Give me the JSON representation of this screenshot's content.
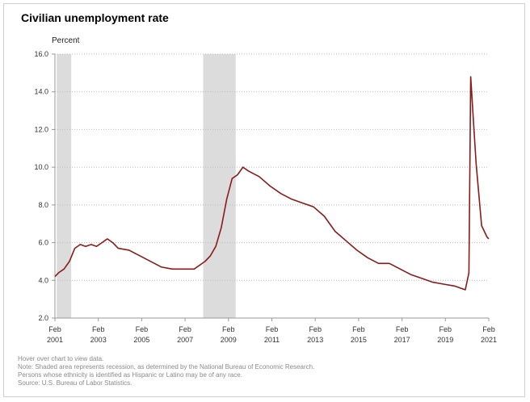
{
  "title": "Civilian unemployment rate",
  "chart_data": {
    "type": "line",
    "title": "Civilian unemployment rate",
    "ylabel": "Percent",
    "xlabel": "",
    "ylim": [
      2.0,
      16.0
    ],
    "yticks": [
      "2.0",
      "4.0",
      "6.0",
      "8.0",
      "10.0",
      "12.0",
      "14.0",
      "16.0"
    ],
    "yticks_values": [
      2,
      4,
      6,
      8,
      10,
      12,
      14,
      16
    ],
    "xlim": [
      2001.083,
      2021.083
    ],
    "xticks": [
      {
        "month": "Feb",
        "year": "2001",
        "value": 2001.083
      },
      {
        "month": "Feb",
        "year": "2003",
        "value": 2003.083
      },
      {
        "month": "Feb",
        "year": "2005",
        "value": 2005.083
      },
      {
        "month": "Feb",
        "year": "2007",
        "value": 2007.083
      },
      {
        "month": "Feb",
        "year": "2009",
        "value": 2009.083
      },
      {
        "month": "Feb",
        "year": "2011",
        "value": 2011.083
      },
      {
        "month": "Feb",
        "year": "2013",
        "value": 2013.083
      },
      {
        "month": "Feb",
        "year": "2015",
        "value": 2015.083
      },
      {
        "month": "Feb",
        "year": "2017",
        "value": 2017.083
      },
      {
        "month": "Feb",
        "year": "2019",
        "value": 2019.083
      },
      {
        "month": "Feb",
        "year": "2021",
        "value": 2021.083
      }
    ],
    "recessions": [
      {
        "start": 2001.167,
        "end": 2001.833
      },
      {
        "start": 2007.917,
        "end": 2009.417
      }
    ],
    "series": [
      {
        "name": "Civilian unemployment rate",
        "color": "#8b1a1a",
        "x": [
          2001.083,
          2001.25,
          2001.5,
          2001.75,
          2002.0,
          2002.25,
          2002.5,
          2002.75,
          2003.0,
          2003.25,
          2003.5,
          2003.75,
          2004.0,
          2004.5,
          2005.0,
          2005.5,
          2006.0,
          2006.5,
          2007.0,
          2007.5,
          2008.0,
          2008.25,
          2008.5,
          2008.75,
          2009.0,
          2009.25,
          2009.5,
          2009.75,
          2010.0,
          2010.5,
          2011.0,
          2011.5,
          2012.0,
          2012.5,
          2013.0,
          2013.5,
          2014.0,
          2014.5,
          2015.0,
          2015.5,
          2016.0,
          2016.5,
          2017.0,
          2017.5,
          2018.0,
          2018.5,
          2019.0,
          2019.5,
          2020.0,
          2020.167,
          2020.25,
          2020.333,
          2020.5,
          2020.75,
          2021.0,
          2021.083
        ],
        "values": [
          4.2,
          4.4,
          4.6,
          5.0,
          5.7,
          5.9,
          5.8,
          5.9,
          5.8,
          6.0,
          6.2,
          6.0,
          5.7,
          5.6,
          5.3,
          5.0,
          4.7,
          4.6,
          4.6,
          4.6,
          5.0,
          5.3,
          5.8,
          6.8,
          8.3,
          9.4,
          9.6,
          10.0,
          9.8,
          9.5,
          9.0,
          8.6,
          8.3,
          8.1,
          7.9,
          7.4,
          6.6,
          6.1,
          5.6,
          5.2,
          4.9,
          4.9,
          4.6,
          4.3,
          4.1,
          3.9,
          3.8,
          3.7,
          3.5,
          4.4,
          14.8,
          13.2,
          10.2,
          6.9,
          6.3,
          6.2
        ]
      }
    ]
  },
  "notes": [
    "Hover over chart to view data.",
    "Note: Shaded area represents recession, as determined by the National Bureau of Economic Research.",
    "Persons whose ethnicity is identified as Hispanic or Latino may be of any race.",
    "Source: U.S. Bureau of Labor Statistics."
  ]
}
